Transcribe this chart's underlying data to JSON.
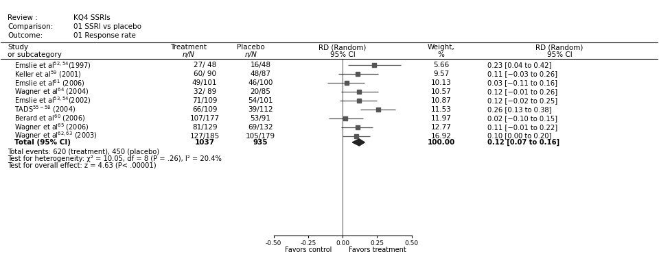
{
  "header_lines": [
    [
      "Review :",
      "KQ4 SSRIs"
    ],
    [
      "Comparison:",
      "01 SSRI vs placebo"
    ],
    [
      "Outcome:",
      "01 Response rate"
    ]
  ],
  "col_headers": {
    "study": [
      "Study",
      "or subcategory"
    ],
    "treatment": [
      "Treatment",
      "n/N"
    ],
    "placebo": [
      "Placebo",
      "n/N"
    ],
    "forest": [
      "RD (Random)",
      "95% CI"
    ],
    "weight": [
      "Weight,",
      "%"
    ],
    "rd_text": [
      "RD (Random)",
      "95% CI"
    ]
  },
  "studies": [
    {
      "name": "Emslie et al",
      "superscript": "52,54",
      "year": "(1997)",
      "treatment": "27/ 48",
      "placebo": "16/48",
      "rd": 0.23,
      "ci_low": 0.04,
      "ci_high": 0.42,
      "weight": "5.66",
      "rd_text": "0.23 [0.04 to 0.42]"
    },
    {
      "name": "Keller et al",
      "superscript": "59",
      "year": " (2001)",
      "treatment": "60/ 90",
      "placebo": "48/87",
      "rd": 0.11,
      "ci_low": -0.03,
      "ci_high": 0.26,
      "weight": "9.57",
      "rd_text": "0.11 [−0.03 to 0.26]"
    },
    {
      "name": "Emslie et al",
      "superscript": "61",
      "year": " (2006)",
      "treatment": "49/101",
      "placebo": "46/100",
      "rd": 0.03,
      "ci_low": -0.11,
      "ci_high": 0.16,
      "weight": "10.13",
      "rd_text": "0.03 [−0.11 to 0.16]"
    },
    {
      "name": "Wagner et al",
      "superscript": "64",
      "year": " (2004)",
      "treatment": "32/ 89",
      "placebo": "20/85",
      "rd": 0.12,
      "ci_low": -0.01,
      "ci_high": 0.26,
      "weight": "10.57",
      "rd_text": "0.12 [−0.01 to 0.26]"
    },
    {
      "name": "Emslie et al",
      "superscript": "53,54",
      "year": "(2002)",
      "treatment": "71/109",
      "placebo": "54/101",
      "rd": 0.12,
      "ci_low": -0.02,
      "ci_high": 0.25,
      "weight": "10.87",
      "rd_text": "0.12 [−0.02 to 0.25]"
    },
    {
      "name": "TADS",
      "superscript": "55-58",
      "year": " (2004)",
      "treatment": "66/109",
      "placebo": "39/112",
      "rd": 0.26,
      "ci_low": 0.13,
      "ci_high": 0.38,
      "weight": "11.53",
      "rd_text": "0.26 [0.13 to 0.38]"
    },
    {
      "name": "Berard et al",
      "superscript": "60",
      "year": " (2006)",
      "treatment": "107/177",
      "placebo": "53/91",
      "rd": 0.02,
      "ci_low": -0.1,
      "ci_high": 0.15,
      "weight": "11.97",
      "rd_text": "0.02 [−0.10 to 0.15]"
    },
    {
      "name": "Wagner et al",
      "superscript": "65",
      "year": " (2006)",
      "treatment": "81/129",
      "placebo": "69/132",
      "rd": 0.11,
      "ci_low": -0.01,
      "ci_high": 0.22,
      "weight": "12.77",
      "rd_text": "0.11 [−0.01 to 0.22]"
    },
    {
      "name": "Wagner et al",
      "superscript": "62,63",
      "year": " (2003)",
      "treatment": "127/185",
      "placebo": "105/179",
      "rd": 0.1,
      "ci_low": 0.0,
      "ci_high": 0.2,
      "weight": "16.92",
      "rd_text": "0.10 [0.00 to 0.20]"
    }
  ],
  "total": {
    "treatment_n": "1037",
    "placebo_n": "935",
    "rd": 0.12,
    "ci_low": 0.07,
    "ci_high": 0.16,
    "weight": "100.00",
    "rd_text": "0.12 [0.07 to 0.16]"
  },
  "footer_lines": [
    "Total events: 620 (treatment), 450 (placebo)",
    "Test for heterogeneity: χ² = 10.05, df = 8 (P = .26), I² = 20.4%",
    "Test for overall effect: z = 4.63 (P< .00001)"
  ],
  "axis_ticks": [
    -0.5,
    -0.25,
    0.0,
    0.25,
    0.5
  ],
  "axis_label_left": "Favors control",
  "axis_label_right": "Favors treatment",
  "bg_color": "#ffffff",
  "text_color": "#000000",
  "line_color": "#000000",
  "marker_color": "#555555",
  "diamond_color": "#222222",
  "fontsize_small": 7.5,
  "fontsize_header": 8.0
}
